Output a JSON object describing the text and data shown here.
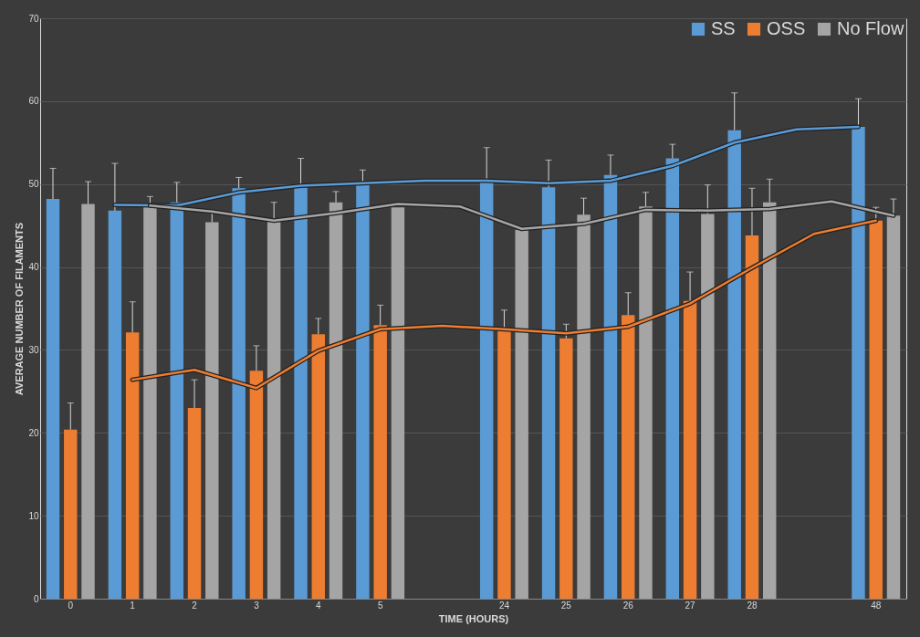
{
  "chart_data": {
    "type": "bar",
    "xlabel": "TIME (HOURS)",
    "ylabel": "AVERAGE NUMBER OF FILAMENTS",
    "categories": [
      "0",
      "1",
      "2",
      "3",
      "4",
      "5",
      null,
      "24",
      "25",
      "26",
      "27",
      "28",
      null,
      "48"
    ],
    "series": [
      {
        "name": "SS",
        "color": "#5b9bd5",
        "values": [
          48.2,
          46.8,
          47.8,
          49.5,
          49.7,
          50.2,
          null,
          50.4,
          49.6,
          51.1,
          53.1,
          56.5,
          null,
          56.9
        ],
        "errors": [
          [
            48.2,
            51.9
          ],
          [
            46.8,
            52.5
          ],
          [
            47.8,
            50.2
          ],
          [
            49.5,
            50.8
          ],
          [
            49.7,
            53.1
          ],
          [
            50.2,
            51.7
          ],
          null,
          [
            50.4,
            54.4
          ],
          [
            49.6,
            52.9
          ],
          [
            51.1,
            53.5
          ],
          [
            53.1,
            54.8
          ],
          [
            56.5,
            61.0
          ],
          null,
          [
            56.9,
            60.3
          ]
        ]
      },
      {
        "name": "OSS",
        "color": "#ed7d31",
        "values": [
          20.4,
          32.1,
          23.0,
          27.5,
          31.9,
          33.0,
          null,
          32.5,
          31.4,
          34.2,
          35.9,
          43.8,
          null,
          45.6
        ],
        "errors": [
          [
            20.4,
            23.6
          ],
          [
            32.1,
            35.8
          ],
          [
            23.0,
            26.4
          ],
          [
            27.5,
            30.5
          ],
          [
            31.9,
            33.8
          ],
          [
            33.0,
            35.4
          ],
          null,
          [
            32.5,
            34.8
          ],
          [
            31.4,
            33.1
          ],
          [
            34.2,
            36.9
          ],
          [
            35.9,
            39.4
          ],
          [
            43.8,
            49.5
          ],
          null,
          [
            45.6,
            47.2
          ]
        ]
      },
      {
        "name": "No Flow",
        "color": "#a5a5a5",
        "values": [
          47.6,
          47.3,
          45.4,
          45.5,
          47.8,
          47.2,
          null,
          44.5,
          46.3,
          47.3,
          46.4,
          47.8,
          null,
          46.2
        ],
        "errors": [
          [
            47.6,
            50.3
          ],
          [
            47.3,
            48.5
          ],
          [
            45.4,
            46.6
          ],
          [
            45.5,
            47.8
          ],
          [
            47.8,
            49.1
          ],
          null,
          null,
          null,
          [
            46.3,
            48.3
          ],
          [
            47.3,
            49.0
          ],
          [
            46.4,
            49.9
          ],
          [
            47.8,
            50.6
          ],
          null,
          [
            46.2,
            48.2
          ]
        ]
      },
      {
        "type": "line",
        "color": "#5b9bd5",
        "values": [
          null,
          47.5,
          47.4,
          49.0,
          49.8,
          50.1,
          50.4,
          50.4,
          50.1,
          50.4,
          52.2,
          55.0,
          56.6,
          56.9
        ]
      },
      {
        "type": "line",
        "color": "#ed7d31",
        "values": [
          null,
          26.4,
          27.6,
          25.4,
          29.9,
          32.5,
          32.9,
          32.5,
          32.0,
          32.8,
          35.6,
          39.9,
          44.0,
          45.6
        ]
      },
      {
        "type": "line",
        "color": "#a5a5a5",
        "values": [
          null,
          47.4,
          46.7,
          45.6,
          46.5,
          47.6,
          47.3,
          44.6,
          45.2,
          46.9,
          46.8,
          47.0,
          47.9,
          46.2
        ]
      }
    ],
    "ylim": [
      0,
      70
    ],
    "yticks": [
      0,
      10,
      20,
      30,
      40,
      50,
      60,
      70
    ],
    "grid": "y",
    "legend": "top right"
  }
}
